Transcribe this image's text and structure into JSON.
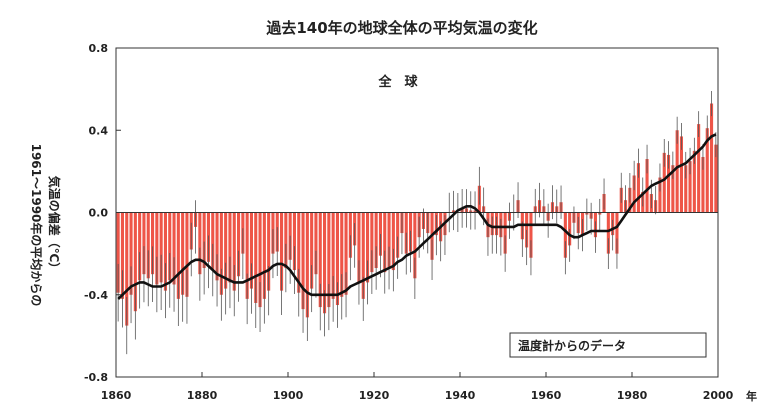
{
  "chart_data": {
    "type": "bar",
    "title": "過去140年の地球全体の平均気温の変化",
    "subtitle": "全　球",
    "ylabel_lines": [
      "1961～1990年の平均からの",
      "気温の偏差（℃）"
    ],
    "xlabel_unit": "年",
    "source_box": "温度計からのデータ",
    "xlim": [
      1860,
      2000
    ],
    "ylim": [
      -0.8,
      0.8
    ],
    "x_ticks": [
      1860,
      1880,
      1900,
      1920,
      1940,
      1960,
      1980,
      2000
    ],
    "y_ticks": [
      {
        "value": 0.8,
        "label": "0.8"
      },
      {
        "value": 0.4,
        "label": "0.4"
      },
      {
        "value": 0.0,
        "label": "0.0"
      },
      {
        "value": -0.4,
        "label": "-0.4"
      },
      {
        "value": -0.8,
        "label": "-0.8"
      }
    ],
    "bar_color": "#ee5548",
    "smooth_color": "#111111",
    "years": [
      1860,
      1861,
      1862,
      1863,
      1864,
      1865,
      1866,
      1867,
      1868,
      1869,
      1870,
      1871,
      1872,
      1873,
      1874,
      1875,
      1876,
      1877,
      1878,
      1879,
      1880,
      1881,
      1882,
      1883,
      1884,
      1885,
      1886,
      1887,
      1888,
      1889,
      1890,
      1891,
      1892,
      1893,
      1894,
      1895,
      1896,
      1897,
      1898,
      1899,
      1900,
      1901,
      1902,
      1903,
      1904,
      1905,
      1906,
      1907,
      1908,
      1909,
      1910,
      1911,
      1912,
      1913,
      1914,
      1915,
      1916,
      1917,
      1918,
      1919,
      1920,
      1921,
      1922,
      1923,
      1924,
      1925,
      1926,
      1927,
      1928,
      1929,
      1930,
      1931,
      1932,
      1933,
      1934,
      1935,
      1936,
      1937,
      1938,
      1939,
      1940,
      1941,
      1942,
      1943,
      1944,
      1945,
      1946,
      1947,
      1948,
      1949,
      1950,
      1951,
      1952,
      1953,
      1954,
      1955,
      1956,
      1957,
      1958,
      1959,
      1960,
      1961,
      1962,
      1963,
      1964,
      1965,
      1966,
      1967,
      1968,
      1969,
      1970,
      1971,
      1972,
      1973,
      1974,
      1975,
      1976,
      1977,
      1978,
      1979,
      1980,
      1981,
      1982,
      1983,
      1984,
      1985,
      1986,
      1987,
      1988,
      1989,
      1990,
      1991,
      1992,
      1993,
      1994,
      1995,
      1996,
      1997,
      1998,
      1999
    ],
    "anomalies": [
      -0.39,
      -0.42,
      -0.55,
      -0.4,
      -0.48,
      -0.33,
      -0.3,
      -0.32,
      -0.3,
      -0.35,
      -0.34,
      -0.38,
      -0.33,
      -0.35,
      -0.42,
      -0.4,
      -0.41,
      -0.18,
      -0.07,
      -0.3,
      -0.27,
      -0.24,
      -0.28,
      -0.33,
      -0.4,
      -0.37,
      -0.34,
      -0.38,
      -0.31,
      -0.2,
      -0.42,
      -0.37,
      -0.44,
      -0.46,
      -0.42,
      -0.38,
      -0.2,
      -0.19,
      -0.38,
      -0.27,
      -0.23,
      -0.28,
      -0.39,
      -0.47,
      -0.51,
      -0.37,
      -0.3,
      -0.46,
      -0.49,
      -0.46,
      -0.42,
      -0.45,
      -0.41,
      -0.4,
      -0.22,
      -0.16,
      -0.34,
      -0.42,
      -0.34,
      -0.29,
      -0.27,
      -0.21,
      -0.29,
      -0.27,
      -0.28,
      -0.22,
      -0.1,
      -0.2,
      -0.19,
      -0.32,
      -0.12,
      -0.08,
      -0.1,
      -0.23,
      -0.11,
      -0.14,
      -0.11,
      0.0,
      0.01,
      0.0,
      0.02,
      0.02,
      0.01,
      0.01,
      0.13,
      0.03,
      -0.12,
      -0.11,
      -0.11,
      -0.12,
      -0.2,
      -0.04,
      0.0,
      0.06,
      -0.13,
      -0.17,
      -0.22,
      0.03,
      0.06,
      0.03,
      -0.04,
      0.05,
      0.03,
      0.05,
      -0.22,
      -0.16,
      -0.05,
      -0.1,
      -0.11,
      -0.01,
      -0.03,
      -0.12,
      -0.01,
      0.09,
      -0.2,
      -0.11,
      -0.2,
      0.12,
      0.06,
      0.12,
      0.18,
      0.24,
      0.1,
      0.26,
      0.09,
      0.06,
      0.17,
      0.29,
      0.28,
      0.23,
      0.4,
      0.37,
      0.23,
      0.25,
      0.3,
      0.43,
      0.27,
      0.41,
      0.53,
      0.33
    ],
    "smoothed": [
      -0.42,
      -0.4,
      -0.38,
      -0.36,
      -0.35,
      -0.34,
      -0.34,
      -0.35,
      -0.36,
      -0.36,
      -0.36,
      -0.35,
      -0.34,
      -0.32,
      -0.3,
      -0.28,
      -0.26,
      -0.24,
      -0.23,
      -0.23,
      -0.24,
      -0.26,
      -0.28,
      -0.3,
      -0.31,
      -0.32,
      -0.33,
      -0.34,
      -0.34,
      -0.34,
      -0.33,
      -0.32,
      -0.31,
      -0.3,
      -0.29,
      -0.28,
      -0.26,
      -0.25,
      -0.25,
      -0.26,
      -0.28,
      -0.31,
      -0.34,
      -0.37,
      -0.39,
      -0.4,
      -0.4,
      -0.4,
      -0.4,
      -0.4,
      -0.4,
      -0.4,
      -0.39,
      -0.38,
      -0.36,
      -0.35,
      -0.34,
      -0.33,
      -0.32,
      -0.31,
      -0.3,
      -0.29,
      -0.28,
      -0.27,
      -0.26,
      -0.24,
      -0.23,
      -0.21,
      -0.2,
      -0.19,
      -0.17,
      -0.15,
      -0.13,
      -0.11,
      -0.09,
      -0.07,
      -0.05,
      -0.03,
      -0.01,
      0.01,
      0.02,
      0.03,
      0.03,
      0.02,
      0.0,
      -0.03,
      -0.06,
      -0.07,
      -0.07,
      -0.07,
      -0.07,
      -0.07,
      -0.07,
      -0.06,
      -0.06,
      -0.06,
      -0.06,
      -0.06,
      -0.06,
      -0.06,
      -0.06,
      -0.06,
      -0.06,
      -0.07,
      -0.09,
      -0.11,
      -0.12,
      -0.12,
      -0.11,
      -0.1,
      -0.09,
      -0.09,
      -0.09,
      -0.09,
      -0.09,
      -0.08,
      -0.07,
      -0.04,
      -0.01,
      0.02,
      0.05,
      0.07,
      0.09,
      0.11,
      0.13,
      0.14,
      0.15,
      0.16,
      0.18,
      0.2,
      0.22,
      0.23,
      0.24,
      0.26,
      0.28,
      0.3,
      0.32,
      0.35,
      0.37,
      0.38
    ]
  }
}
